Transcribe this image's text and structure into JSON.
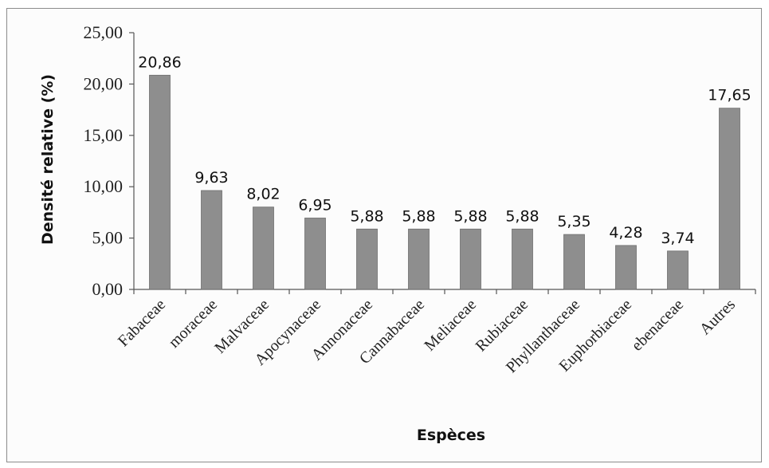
{
  "chart_data": {
    "type": "bar",
    "xlabel": "Espèces",
    "ylabel": "Densité relative (%)",
    "categories": [
      "Fabaceae",
      "moraceae",
      "Malvaceae",
      "Apocynaceae",
      "Annonaceae",
      "Cannabaceae",
      "Meliaceae",
      "Rubiaceae",
      "Phyllanthaceae",
      "Euphorbiaceae",
      "ebenaceae",
      "Autres"
    ],
    "values": [
      20.86,
      9.63,
      8.02,
      6.95,
      5.88,
      5.88,
      5.88,
      5.88,
      5.35,
      4.28,
      3.74,
      17.65
    ],
    "value_labels": [
      "20,86",
      "9,63",
      "8,02",
      "6,95",
      "5,88",
      "5,88",
      "5,88",
      "5,88",
      "5,35",
      "4,28",
      "3,74",
      "17,65"
    ],
    "y_ticks": [
      0,
      5,
      10,
      15,
      20,
      25
    ],
    "y_tick_labels": [
      "0,00",
      "5,00",
      "10,00",
      "15,00",
      "20,00",
      "25,00"
    ],
    "ylim": [
      0,
      25
    ],
    "grid": false,
    "legend": "none",
    "bar_color": "#8e8e8e"
  }
}
